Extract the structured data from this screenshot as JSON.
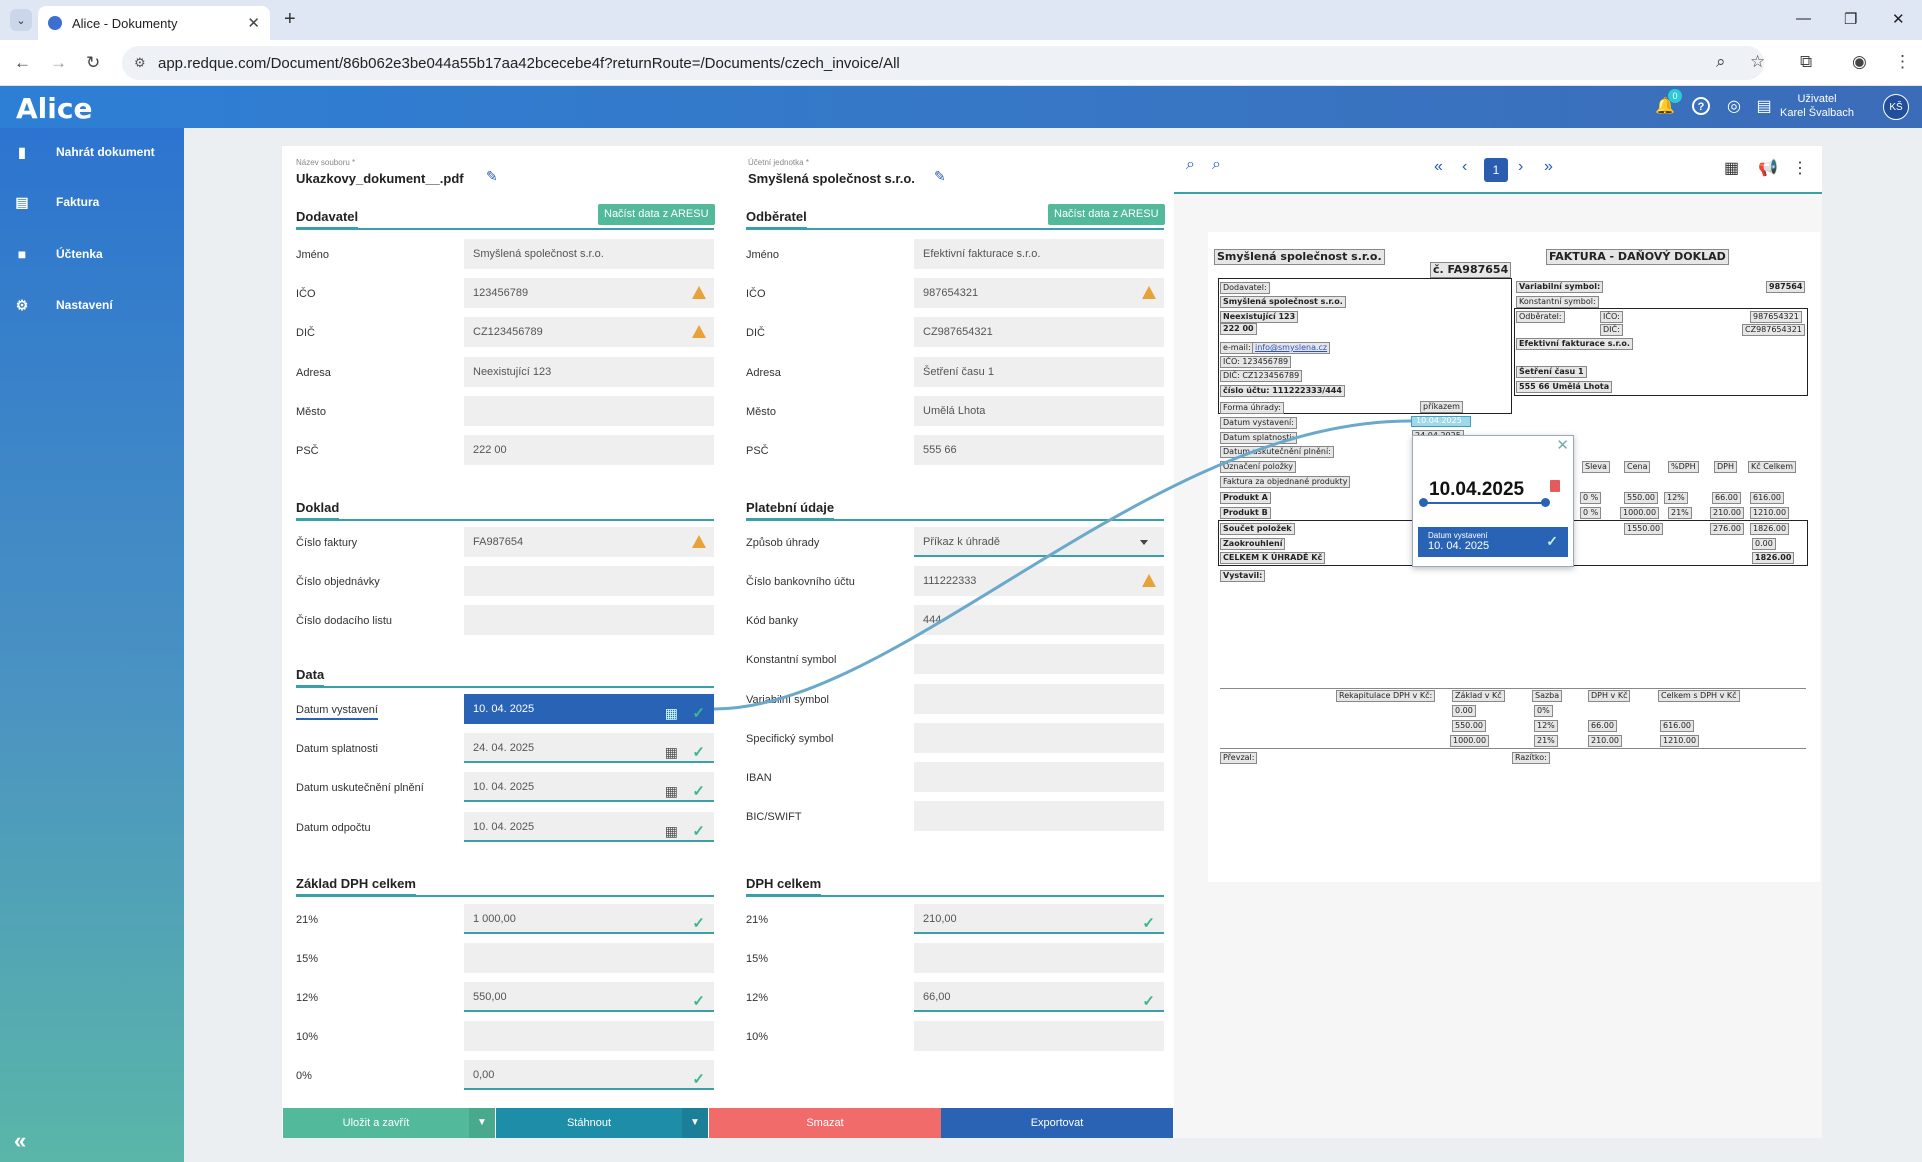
{
  "browser": {
    "tab_title": "Alice - Dokumenty",
    "url": "app.redque.com/Document/86b062e3be044a55b17aa42bcecebe4f?returnRoute=/Documents/czech_invoice/All"
  },
  "header": {
    "logo": "Alice",
    "notif_count": "0",
    "user_role": "Uživatel",
    "user_name": "Karel Švalbach",
    "avatar": "KŠ"
  },
  "sidebar": {
    "items": [
      {
        "label": "Nahrát dokument"
      },
      {
        "label": "Faktura"
      },
      {
        "label": "Účtenka"
      },
      {
        "label": "Nastavení"
      }
    ]
  },
  "top": {
    "file_label": "Název souboru *",
    "file_name": "Ukazkovy_dokument__.pdf",
    "unit_label": "Účetní jednotka *",
    "unit_name": "Smyšlená společnost s.r.o."
  },
  "aresu_label": "Načíst data z ARESU",
  "dodavatel": {
    "title": "Dodavatel",
    "fields": [
      {
        "label": "Jméno",
        "value": "Smyšlená společnost s.r.o."
      },
      {
        "label": "IČO",
        "value": "123456789"
      },
      {
        "label": "DIČ",
        "value": "CZ123456789"
      },
      {
        "label": "Adresa",
        "value": "Neexistující 123"
      },
      {
        "label": "Město",
        "value": ""
      },
      {
        "label": "PSČ",
        "value": "222 00"
      }
    ]
  },
  "odberatel": {
    "title": "Odběratel",
    "fields": [
      {
        "label": "Jméno",
        "value": "Efektivní fakturace s.r.o."
      },
      {
        "label": "IČO",
        "value": "987654321"
      },
      {
        "label": "DIČ",
        "value": "CZ987654321"
      },
      {
        "label": "Adresa",
        "value": "Šetření času 1"
      },
      {
        "label": "Město",
        "value": "Umělá Lhota"
      },
      {
        "label": "PSČ",
        "value": "555 66"
      }
    ]
  },
  "doklad": {
    "title": "Doklad",
    "fields": [
      {
        "label": "Číslo faktury",
        "value": "FA987654"
      },
      {
        "label": "Číslo objednávky",
        "value": ""
      },
      {
        "label": "Číslo dodacího listu",
        "value": ""
      }
    ]
  },
  "data": {
    "title": "Data",
    "fields": [
      {
        "label": "Datum vystavení",
        "value": "10. 04. 2025"
      },
      {
        "label": "Datum splatnosti",
        "value": "24. 04. 2025"
      },
      {
        "label": "Datum uskutečnění plnění",
        "value": "10. 04. 2025"
      },
      {
        "label": "Datum odpočtu",
        "value": "10. 04. 2025"
      }
    ]
  },
  "platebni": {
    "title": "Platební údaje",
    "fields": [
      {
        "label": "Způsob úhrady",
        "value": "Příkaz k úhradě"
      },
      {
        "label": "Číslo bankovního účtu",
        "value": "111222333"
      },
      {
        "label": "Kód banky",
        "value": "444"
      },
      {
        "label": "Konstantní symbol",
        "value": ""
      },
      {
        "label": "Variabilní symbol",
        "value": ""
      },
      {
        "label": "Specifický symbol",
        "value": ""
      },
      {
        "label": "IBAN",
        "value": ""
      },
      {
        "label": "BIC/SWIFT",
        "value": ""
      }
    ]
  },
  "zaklad": {
    "title": "Základ DPH celkem",
    "fields": [
      {
        "label": "21%",
        "value": "1  000,00"
      },
      {
        "label": "15%",
        "value": ""
      },
      {
        "label": "12%",
        "value": "550,00"
      },
      {
        "label": "10%",
        "value": ""
      },
      {
        "label": "0%",
        "value": "0,00"
      }
    ]
  },
  "dph": {
    "title": "DPH celkem",
    "fields": [
      {
        "label": "21%",
        "value": "210,00"
      },
      {
        "label": "15%",
        "value": ""
      },
      {
        "label": "12%",
        "value": "66,00"
      },
      {
        "label": "10%",
        "value": ""
      }
    ]
  },
  "buttons": {
    "save": "Uložit a zavřít",
    "download": "Stáhnout",
    "delete": "Smazat",
    "export": "Exportovat"
  },
  "colors": {
    "save": "#52b99a",
    "download": "#1e8ea8",
    "delete": "#f26b6b",
    "export": "#2a63b3",
    "accent": "#3aa0a8"
  },
  "viewer": {
    "page": "1"
  },
  "doc": {
    "company": "Smyšlená společnost s.r.o.",
    "invoice_no": "č. FA987654",
    "heading": "FAKTURA - DAŇOVÝ DOKLAD",
    "dodavatel_lbl": "Dodavatel:",
    "company2": "Smyšlená společnost s.r.o.",
    "street": "Neexistující 123",
    "zip": "222 00",
    "email_lbl": "e-mail:",
    "email": "info@smyslena.cz",
    "ico": "IČO: 123456789",
    "dic": "DIČ: CZ123456789",
    "account": "číslo účtu: 111222333/444",
    "var_sym_lbl": "Variabilní symbol:",
    "var_sym": "987564",
    "konst_sym_lbl": "Konstantní symbol:",
    "odberatel_lbl": "Odběratel:",
    "ico_lbl": "IČO:",
    "ico_val": "987654321",
    "dic_lbl": "DIČ:",
    "dic_val": "CZ987654321",
    "cust_name": "Efektivní fakturace s.r.o.",
    "cust_street": "Šetření času 1",
    "cust_city": "555 66 Umělá Lhota",
    "forma_lbl": "Forma úhrady:",
    "forma": "příkazem",
    "vyst_lbl": "Datum vystavení:",
    "vyst": "10.04.2025",
    "splat_lbl": "Datum splatnosti:",
    "splat": "24.04.2025",
    "usk_lbl": "Datum uskutečnění plnění:",
    "ozn_lbl": "Označení položky",
    "sleva_lbl": "Sleva",
    "cena_lbl": "Cena",
    "pdph_lbl": "%DPH",
    "dph_lbl": "DPH",
    "kc_celkem_lbl": "Kč Celkem",
    "desc": "Faktura za objednané produkty",
    "produkt_a": "Produkt A",
    "a_sleva": "0 %",
    "a_cena": "550.00",
    "a_pdph": "12%",
    "a_dph": "66.00",
    "a_celkem": "616.00",
    "produkt_b": "Produkt B",
    "b_sleva": "0 %",
    "b_cena": "1000.00",
    "b_pdph": "21%",
    "b_dph": "210.00",
    "b_celkem": "1210.00",
    "soucet_lbl": "Součet položek",
    "soucet": "1550.00",
    "soucet_dph": "276.00",
    "soucet_celkem": "1826.00",
    "zaokr_lbl": "Zaokrouhlení",
    "zaokr": "0.00",
    "celkem_lbl": "CELKEM K ÚHRADĚ Kč",
    "celkem": "1826.00",
    "vystavil_lbl": "Vystavil:",
    "rekap_lbl": "Rekapitulace DPH v Kč:",
    "zaklad_lbl": "Základ v Kč",
    "sazba_lbl": "Sazba",
    "dphkc_lbl": "DPH v Kč",
    "celkemdph_lbl": "Celkem s DPH v Kč",
    "r1z": "0.00",
    "r1s": "0%",
    "r2z": "550.00",
    "r2s": "12%",
    "r2d": "66.00",
    "r2c": "616.00",
    "r3z": "1000.00",
    "r3s": "21%",
    "r3d": "210.00",
    "r3c": "1210.00",
    "prevzal_lbl": "Převzal:",
    "razitko_lbl": "Razítko:"
  },
  "popup": {
    "date": "10.04.2025",
    "field_label": "Datum vystavení",
    "field_value": "10. 04. 2025"
  }
}
